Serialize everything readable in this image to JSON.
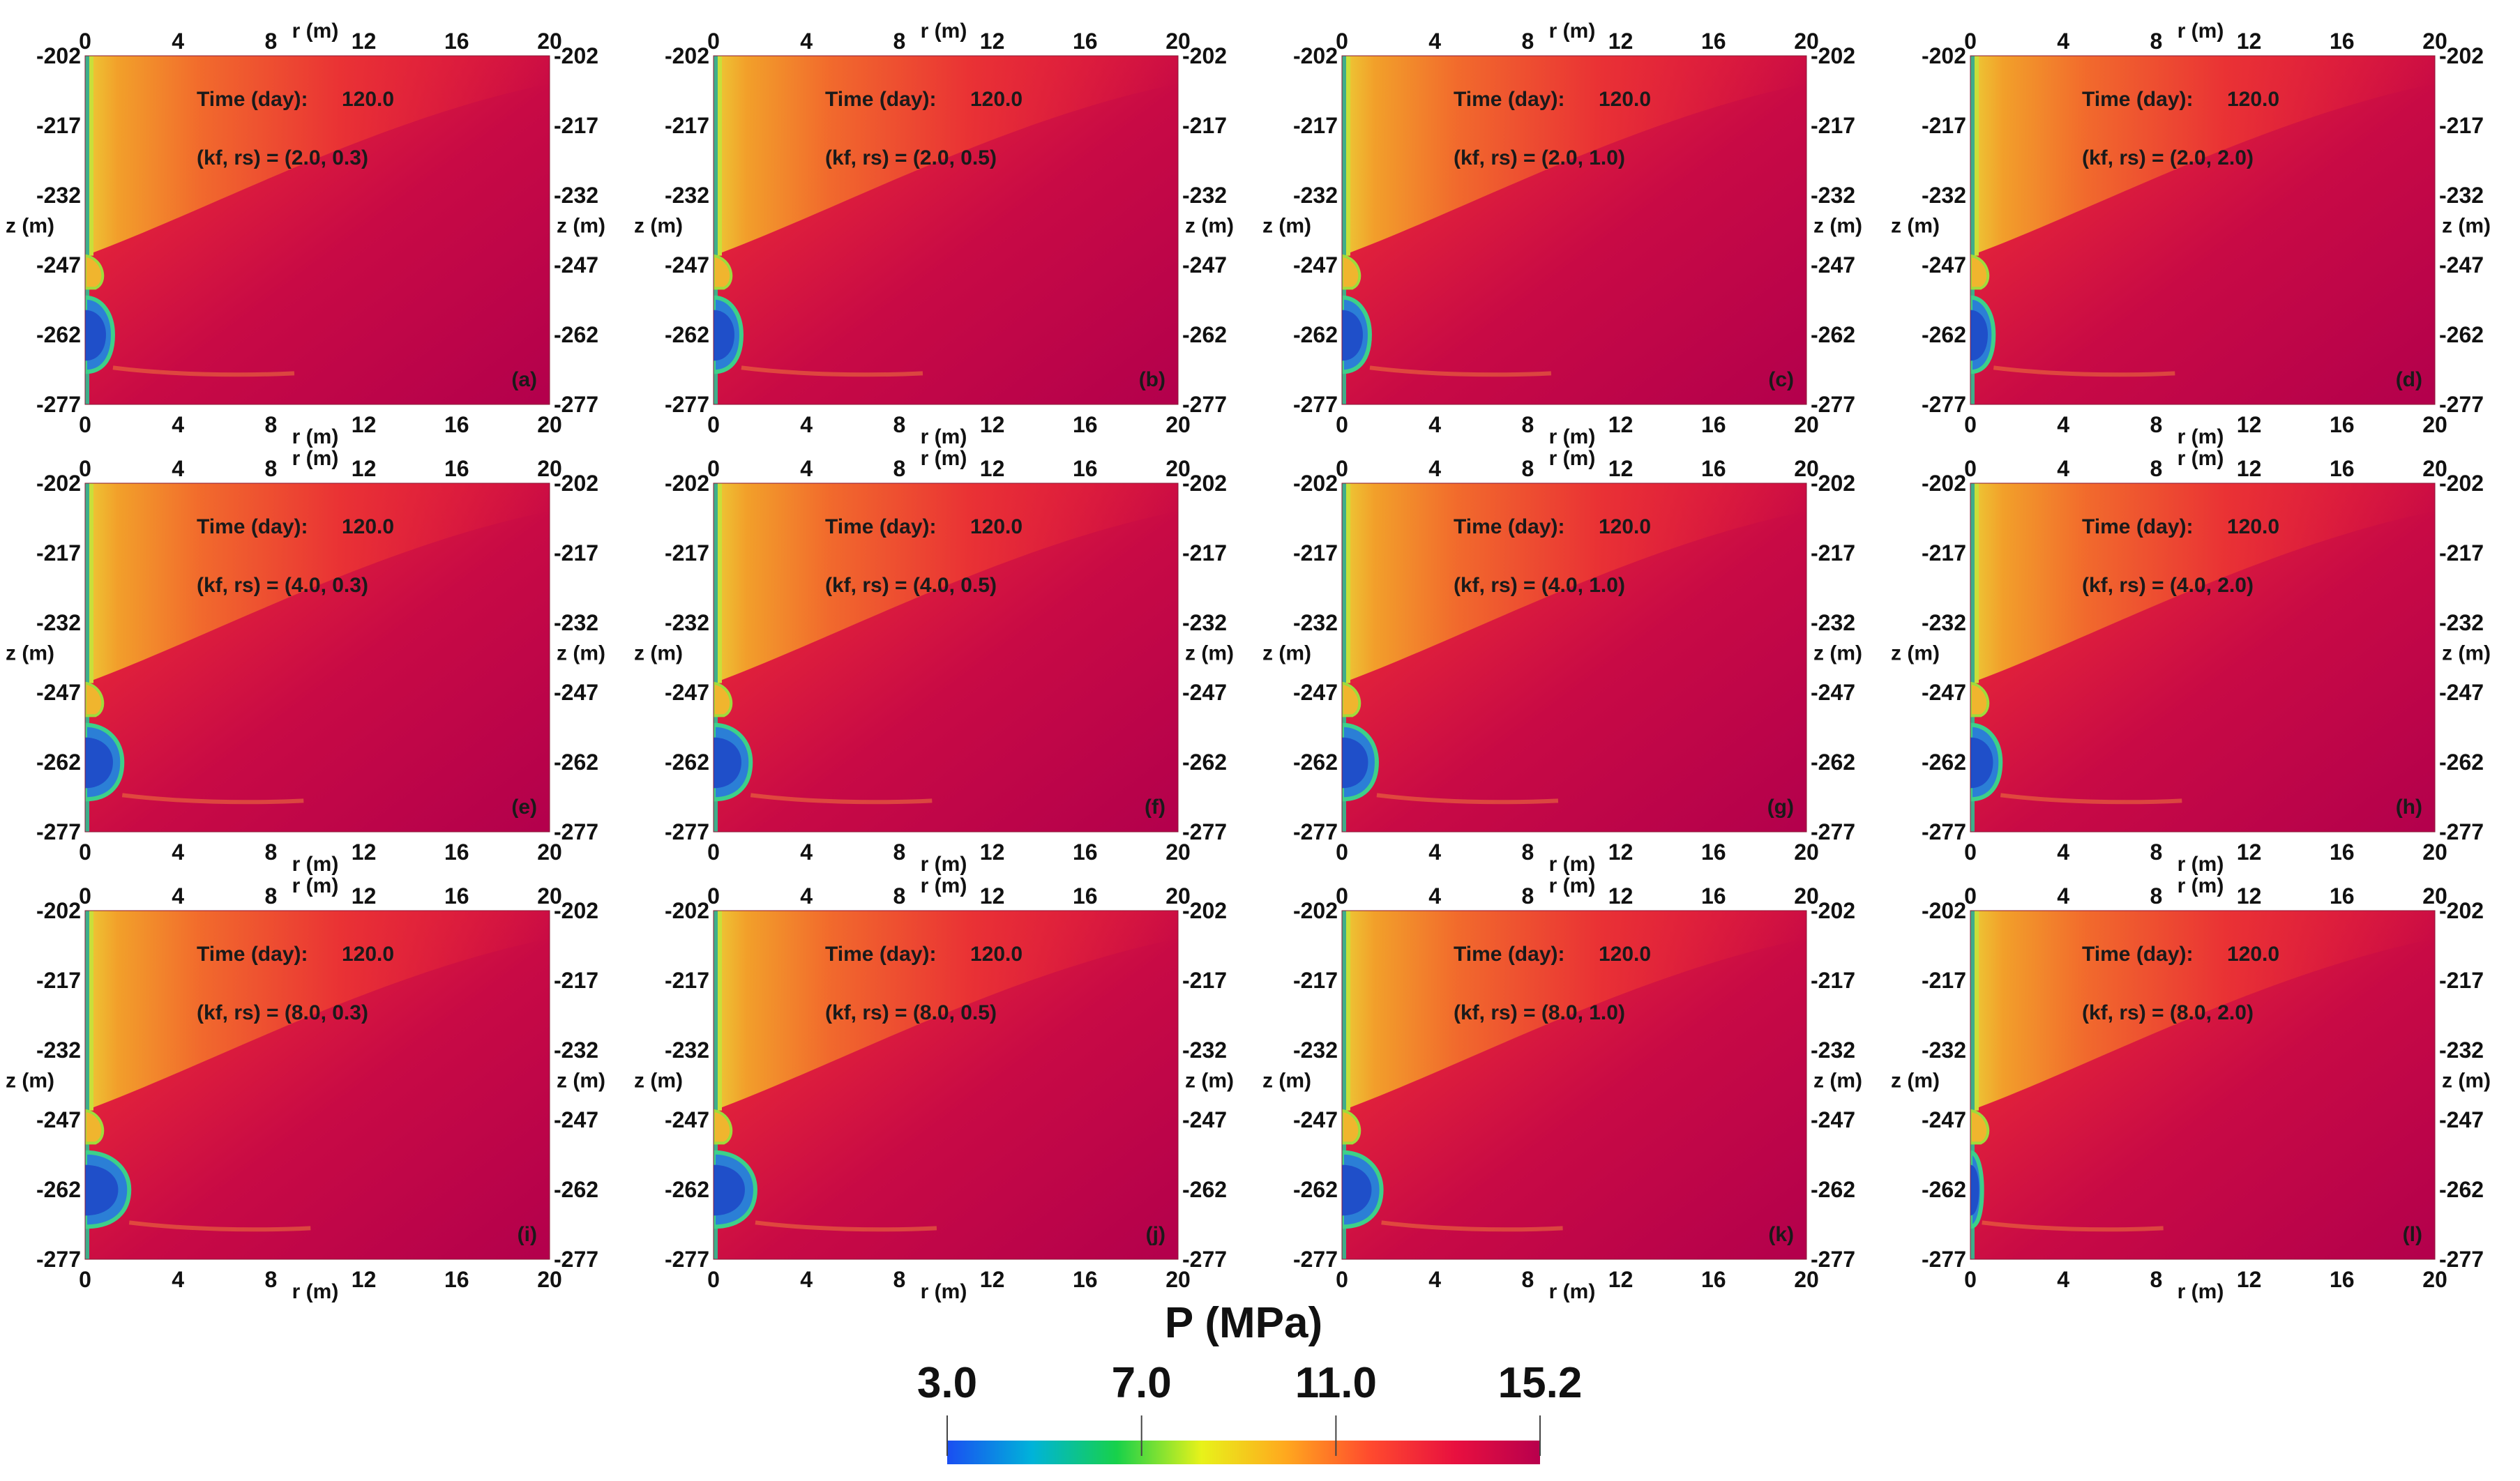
{
  "chart_data": {
    "type": "heatmap",
    "quantity": "P (MPa)",
    "time_label": "Time (day):",
    "time_value": "120.0",
    "x_axis": {
      "label": "r (m)",
      "range": [
        0,
        20
      ],
      "ticks": [
        "0",
        "4",
        "8",
        "12",
        "16",
        "20"
      ]
    },
    "y_axis": {
      "label": "z (m)",
      "range": [
        -277,
        -202
      ],
      "ticks": [
        "-202",
        "-217",
        "-232",
        "-247",
        "-262",
        "-277"
      ]
    },
    "colorbar": {
      "title": "P (MPa)",
      "range": [
        3.0,
        15.2
      ],
      "ticks": [
        "3.0",
        "7.0",
        "11.0",
        "15.2"
      ],
      "ticks_value": [
        3.0,
        7.0,
        11.0,
        15.2
      ],
      "colors": [
        "#1a4ef2",
        "#00b3d9",
        "#17d14a",
        "#e8f21a",
        "#ffa81e",
        "#ff4a2e",
        "#e8103f",
        "#b8004d"
      ]
    },
    "panels": [
      {
        "id": "(a)",
        "kf": "2.0",
        "rs": "0.3",
        "params": "(kf, rs) = (2.0, 0.3)",
        "low_pressure_zone_radius_m": 1.2
      },
      {
        "id": "(b)",
        "kf": "2.0",
        "rs": "0.5",
        "params": "(kf, rs) = (2.0, 0.5)",
        "low_pressure_zone_radius_m": 1.2
      },
      {
        "id": "(c)",
        "kf": "2.0",
        "rs": "1.0",
        "params": "(kf, rs) = (2.0, 1.0)",
        "low_pressure_zone_radius_m": 1.2
      },
      {
        "id": "(d)",
        "kf": "2.0",
        "rs": "2.0",
        "params": "(kf, rs) = (2.0, 2.0)",
        "low_pressure_zone_radius_m": 1.0
      },
      {
        "id": "(e)",
        "kf": "4.0",
        "rs": "0.3",
        "params": "(kf, rs) = (4.0, 0.3)",
        "low_pressure_zone_radius_m": 1.6
      },
      {
        "id": "(f)",
        "kf": "4.0",
        "rs": "0.5",
        "params": "(kf, rs) = (4.0, 0.5)",
        "low_pressure_zone_radius_m": 1.6
      },
      {
        "id": "(g)",
        "kf": "4.0",
        "rs": "1.0",
        "params": "(kf, rs) = (4.0, 1.0)",
        "low_pressure_zone_radius_m": 1.5
      },
      {
        "id": "(h)",
        "kf": "4.0",
        "rs": "2.0",
        "params": "(kf, rs) = (4.0, 2.0)",
        "low_pressure_zone_radius_m": 1.3
      },
      {
        "id": "(i)",
        "kf": "8.0",
        "rs": "0.3",
        "params": "(kf, rs) = (8.0, 0.3)",
        "low_pressure_zone_radius_m": 1.9
      },
      {
        "id": "(j)",
        "kf": "8.0",
        "rs": "0.5",
        "params": "(kf, rs) = (8.0, 0.5)",
        "low_pressure_zone_radius_m": 1.8
      },
      {
        "id": "(k)",
        "kf": "8.0",
        "rs": "1.0",
        "params": "(kf, rs) = (8.0, 1.0)",
        "low_pressure_zone_radius_m": 1.7
      },
      {
        "id": "(l)",
        "kf": "8.0",
        "rs": "2.0",
        "params": "(kf, rs) = (8.0, 2.0)",
        "low_pressure_zone_radius_m": 0.5
      }
    ]
  }
}
